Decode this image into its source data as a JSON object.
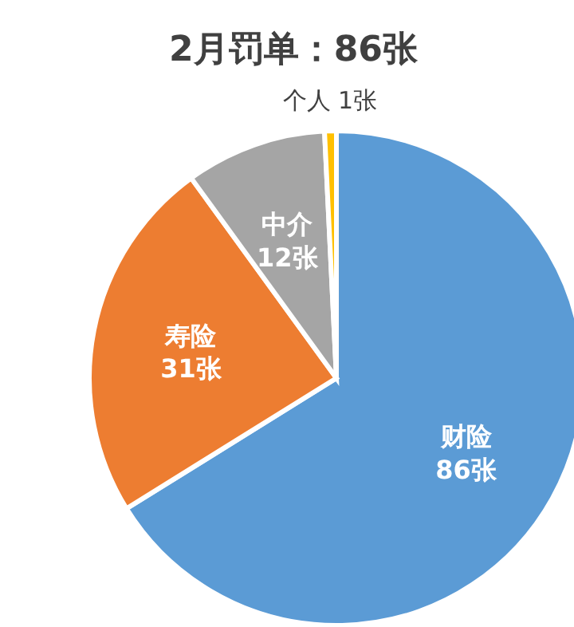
{
  "chart_data": {
    "type": "pie",
    "title": "2月罚单：86张",
    "categories": [
      "财险",
      "寿险",
      "中介",
      "个人"
    ],
    "values": [
      86,
      31,
      12,
      1
    ],
    "colors": [
      "#5b9bd5",
      "#ed7d31",
      "#a5a5a5",
      "#ffc000"
    ],
    "value_labels": [
      "86张",
      "31张",
      "12张",
      "1张"
    ]
  }
}
